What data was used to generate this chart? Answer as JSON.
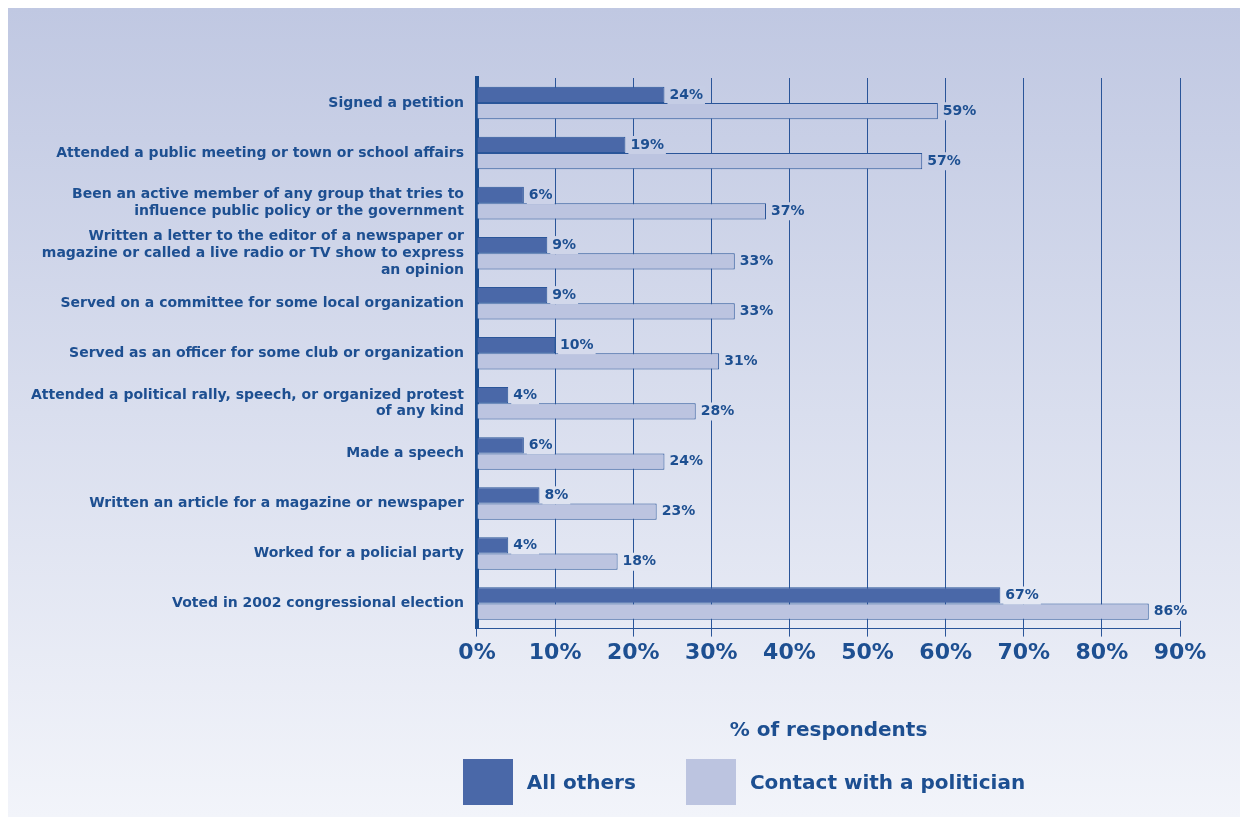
{
  "chart_data": {
    "type": "bar",
    "orientation": "horizontal",
    "xlabel": "% of respondents",
    "categories": [
      "Signed a petition",
      "Attended a public meeting or town or school affairs",
      "Been an active member of any group that tries to influence public policy or the government",
      "Written a letter to the editor of a newspaper or magazine or called a live radio or TV show to express an opinion",
      "Served on a committee for some local organization",
      "Served as an officer for some club or organization",
      "Attended a political rally, speech, or organized protest of any kind",
      "Made a speech",
      "Written an article for a magazine or newspaper",
      "Worked for a policial party",
      "Voted in 2002 congressional election"
    ],
    "series": [
      {
        "name": "All others",
        "color": "#4a68a8",
        "values": [
          24,
          19,
          6,
          9,
          9,
          10,
          4,
          6,
          8,
          4,
          67
        ],
        "value_labels": [
          "24%",
          "19%",
          "6%",
          "9%",
          "9%",
          "10%",
          "4%",
          "6%",
          "8%",
          "4%",
          "67%"
        ]
      },
      {
        "name": "Contact with a politician",
        "color": "#bcc4e0",
        "values": [
          59,
          57,
          37,
          33,
          33,
          31,
          28,
          24,
          23,
          18,
          86
        ],
        "value_labels": [
          "59%",
          "57%",
          "37%",
          "33%",
          "33%",
          "31%",
          "28%",
          "24%",
          "23%",
          "18%",
          "86%"
        ]
      }
    ],
    "xlim": [
      0,
      90
    ],
    "xticks": [
      {
        "value": 0,
        "label": "0%"
      },
      {
        "value": 10,
        "label": "10%"
      },
      {
        "value": 20,
        "label": "20%"
      },
      {
        "value": 30,
        "label": "30%"
      },
      {
        "value": 40,
        "label": "40%"
      },
      {
        "value": 50,
        "label": "50%"
      },
      {
        "value": 60,
        "label": "60%"
      },
      {
        "value": 70,
        "label": "70%"
      },
      {
        "value": 80,
        "label": "80%"
      },
      {
        "value": 90,
        "label": "90%"
      }
    ],
    "grid": "x",
    "legend": "bottom"
  }
}
